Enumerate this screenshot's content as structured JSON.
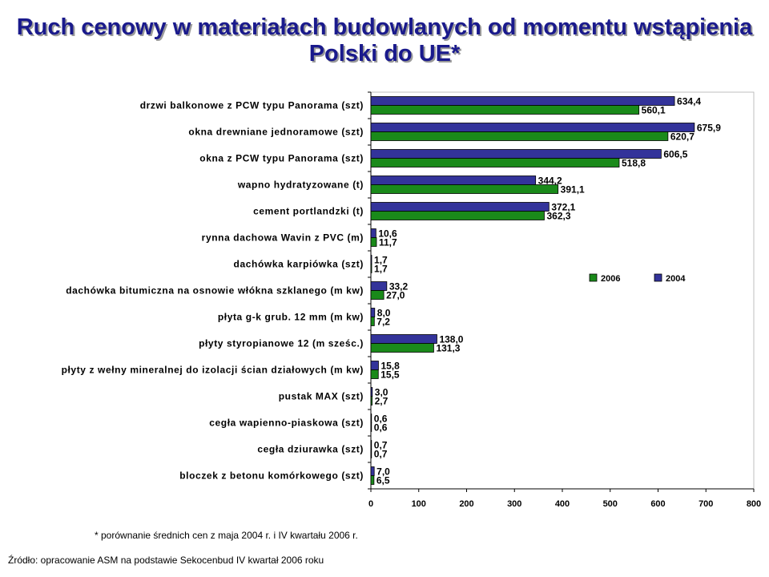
{
  "title": {
    "line1": "Ruch cenowy w materiałach budowlanych od momentu wstąpienia",
    "line2": "Polski do UE*"
  },
  "footnote": "* porównanie średnich cen z maja 2004 r. i IV kwartału 2006 r.",
  "source": "Źródło: opracowanie ASM  na podstawie Sekocenbud IV kwartał 2006 roku",
  "colors": {
    "s2004": "#33339a",
    "s2006": "#1a8a1a",
    "border": "#000000"
  },
  "chart_data": {
    "type": "bar",
    "orientation": "horizontal",
    "categories": [
      "drzwi balkonowe z PCW typu Panorama (szt)",
      "okna drewniane jednoramowe (szt)",
      "okna z PCW typu Panorama (szt)",
      "wapno hydratyzowane (t)",
      "cement portlandzki (t)",
      "rynna dachowa Wavin z PVC (m)",
      "dachówka karpiówka (szt)",
      "dachówka bitumiczna na osnowie włókna szklanego (m kw)",
      "płyta g-k grub. 12 mm (m kw)",
      "płyty styropianowe 12 (m sześc.)",
      "płyty z wełny mineralnej do izolacji ścian działowych (m kw)",
      "pustak MAX (szt)",
      "cegła wapienno-piaskowa (szt)",
      "cegła dziurawka (szt)",
      "bloczek z betonu komórkowego (szt)"
    ],
    "series": [
      {
        "name": "2004",
        "color": "#33339a",
        "values": [
          634.4,
          675.9,
          606.5,
          344.2,
          372.1,
          10.6,
          1.7,
          33.2,
          8.0,
          138.0,
          15.8,
          3.0,
          0.6,
          0.7,
          7.0
        ],
        "labels": [
          "634,4",
          "675,9",
          "606,5",
          "344,2",
          "372,1",
          "10,6",
          "1,7",
          "33,2",
          "8,0",
          "138,0",
          "15,8",
          "3,0",
          "0,6",
          "0,7",
          "7,0"
        ]
      },
      {
        "name": "2006",
        "color": "#1a8a1a",
        "values": [
          560.1,
          620.7,
          518.8,
          391.1,
          362.3,
          11.7,
          1.7,
          27.0,
          7.2,
          131.3,
          15.5,
          2.7,
          0.6,
          0.7,
          6.5
        ],
        "labels": [
          "560,1",
          "620,7",
          "518,8",
          "391,1",
          "362,3",
          "11,7",
          "1,7",
          "27,0",
          "7,2",
          "131,3",
          "15,5",
          "2,7",
          "0,6",
          "0,7",
          "6,5"
        ]
      }
    ],
    "xlim": [
      0,
      800
    ],
    "xticks": [
      0,
      100,
      200,
      300,
      400,
      500,
      600,
      700,
      800
    ],
    "xlabel": "",
    "ylabel": "",
    "grid": false,
    "legend": {
      "entries": [
        "2006",
        "2004"
      ],
      "placement": "right-middle"
    }
  }
}
